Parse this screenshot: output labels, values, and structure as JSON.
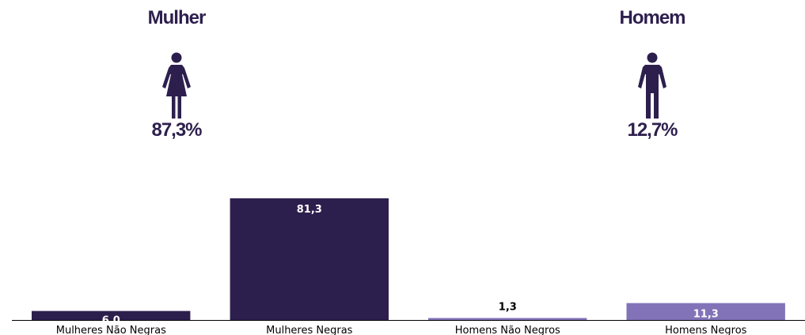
{
  "genders": {
    "female": {
      "title": "Mulher",
      "percent": "87,3%",
      "icon": "female-person-icon"
    },
    "male": {
      "title": "Homem",
      "percent": "12,7%",
      "icon": "male-person-icon"
    }
  },
  "colors": {
    "dark": "#2d1f4d",
    "light": "#8273b8",
    "text_dark": "#2d1f4d"
  },
  "chart_data": {
    "type": "bar",
    "categories": [
      "Mulheres Não Negras",
      "Mulheres Negras",
      "Homens Não Negros",
      "Homens Negros"
    ],
    "values": [
      6.0,
      81.3,
      1.3,
      11.3
    ],
    "value_labels": [
      "6,0",
      "81,3",
      "1,3",
      "11,3"
    ],
    "bar_colors": [
      "#2d1f4d",
      "#2d1f4d",
      "#8273b8",
      "#8273b8"
    ],
    "ylim": [
      0,
      81.3
    ],
    "grid": false,
    "title": "",
    "xlabel": "",
    "ylabel": ""
  }
}
